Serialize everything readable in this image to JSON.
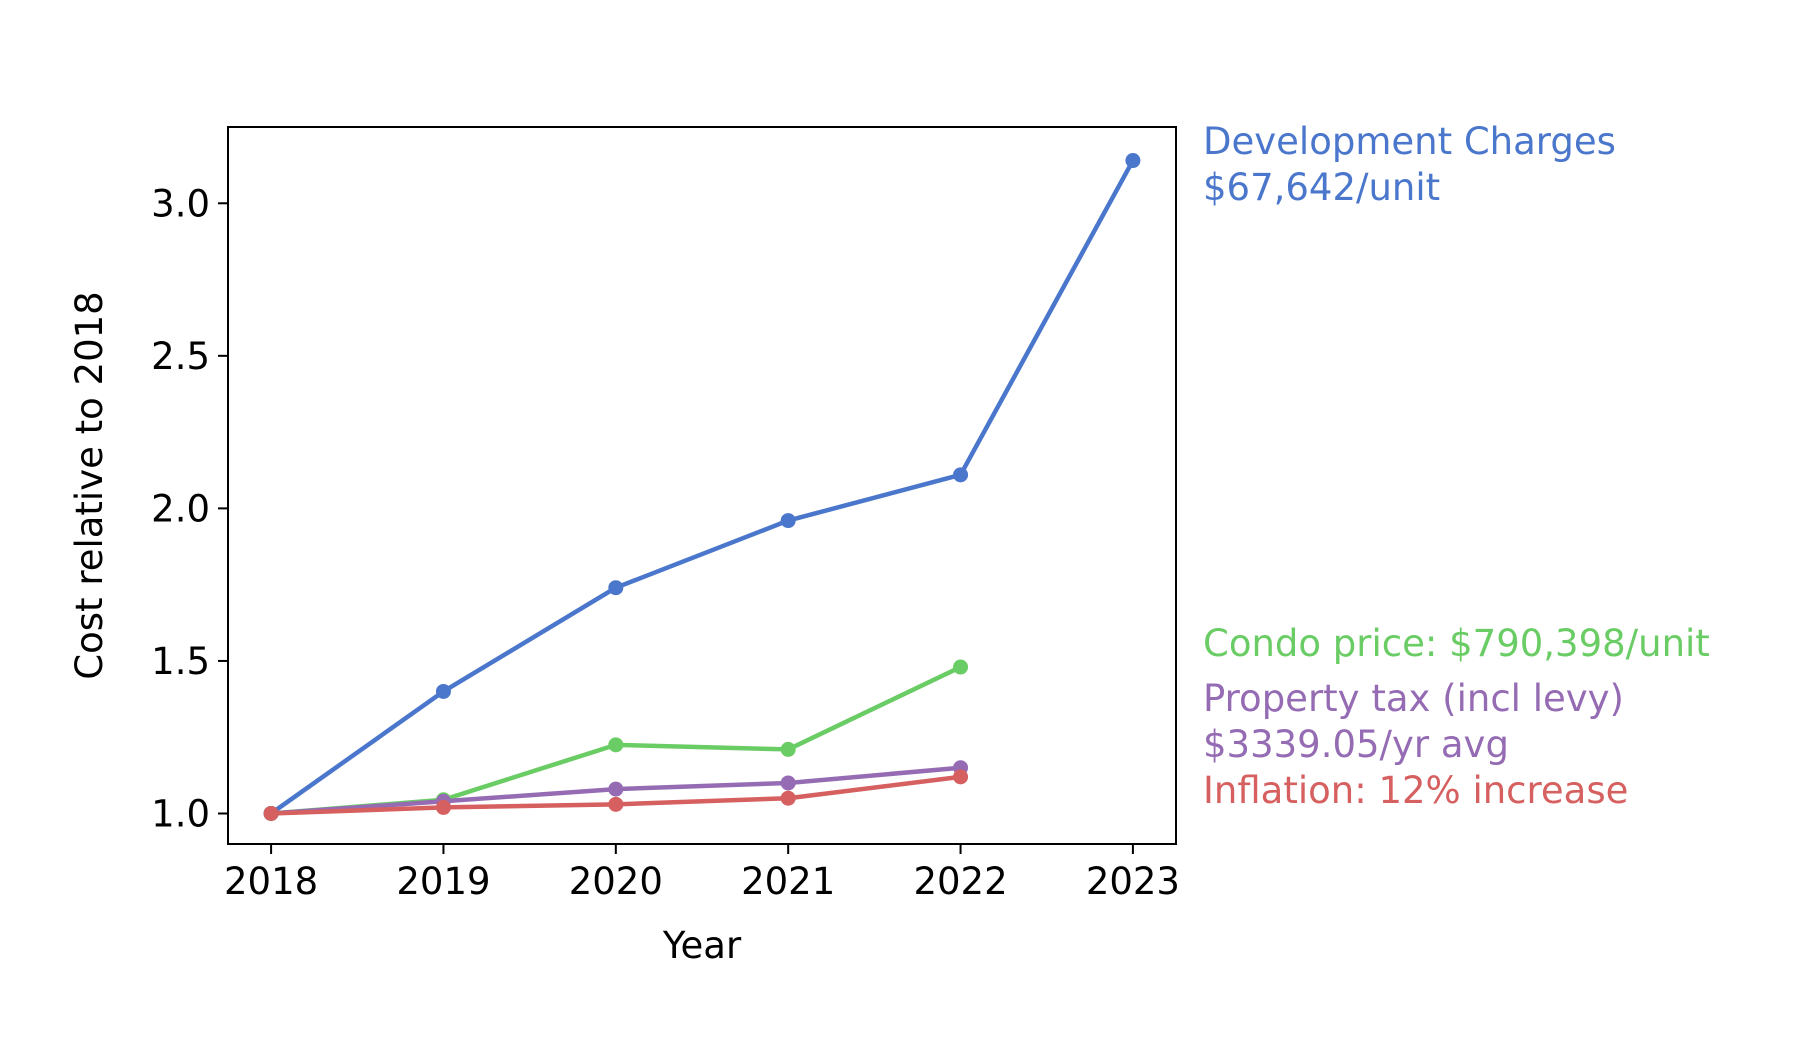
{
  "chart_data": {
    "type": "line",
    "title": "",
    "xlabel": "Year",
    "ylabel": "Cost relative to 2018",
    "x": [
      2018,
      2019,
      2020,
      2021,
      2022,
      2023
    ],
    "x_tick_labels": [
      "2018",
      "2019",
      "2020",
      "2021",
      "2022",
      "2023"
    ],
    "y_ticks": [
      1.0,
      1.5,
      2.0,
      2.5,
      3.0
    ],
    "y_tick_labels": [
      "1.0",
      "1.5",
      "2.0",
      "2.5",
      "3.0"
    ],
    "xlim": [
      2017.75,
      2023.25
    ],
    "ylim": [
      0.9,
      3.25
    ],
    "grid": false,
    "legend": "none; series labelled by text annotations to the right of the plot",
    "series": [
      {
        "key": "development_charges",
        "color": "#4a77cc",
        "x": [
          2018,
          2019,
          2020,
          2021,
          2022,
          2023
        ],
        "values": [
          1.0,
          1.4,
          1.74,
          1.96,
          2.11,
          3.14
        ]
      },
      {
        "key": "condo_price",
        "color": "#6acc64",
        "x": [
          2018,
          2019,
          2020,
          2021,
          2022
        ],
        "values": [
          1.0,
          1.045,
          1.225,
          1.21,
          1.48
        ]
      },
      {
        "key": "property_tax",
        "color": "#956cb4",
        "x": [
          2018,
          2019,
          2020,
          2021,
          2022
        ],
        "values": [
          1.0,
          1.04,
          1.08,
          1.1,
          1.15
        ]
      },
      {
        "key": "inflation",
        "color": "#d65f5f",
        "x": [
          2018,
          2019,
          2020,
          2021,
          2022
        ],
        "values": [
          1.0,
          1.02,
          1.03,
          1.05,
          1.12
        ]
      }
    ],
    "annotations": [
      {
        "key": "development_charges",
        "color": "#4a77cc",
        "lines": [
          "Development Charges",
          "$67,642/unit"
        ]
      },
      {
        "key": "condo_price",
        "color": "#6acc64",
        "lines": [
          "Condo price: $790,398/unit"
        ]
      },
      {
        "key": "property_tax",
        "color": "#956cb4",
        "lines": [
          "Property tax (incl levy)",
          "$3339.05/yr avg"
        ]
      },
      {
        "key": "inflation",
        "color": "#d65f5f",
        "lines": [
          "Inflation: 12% increase"
        ]
      }
    ]
  }
}
